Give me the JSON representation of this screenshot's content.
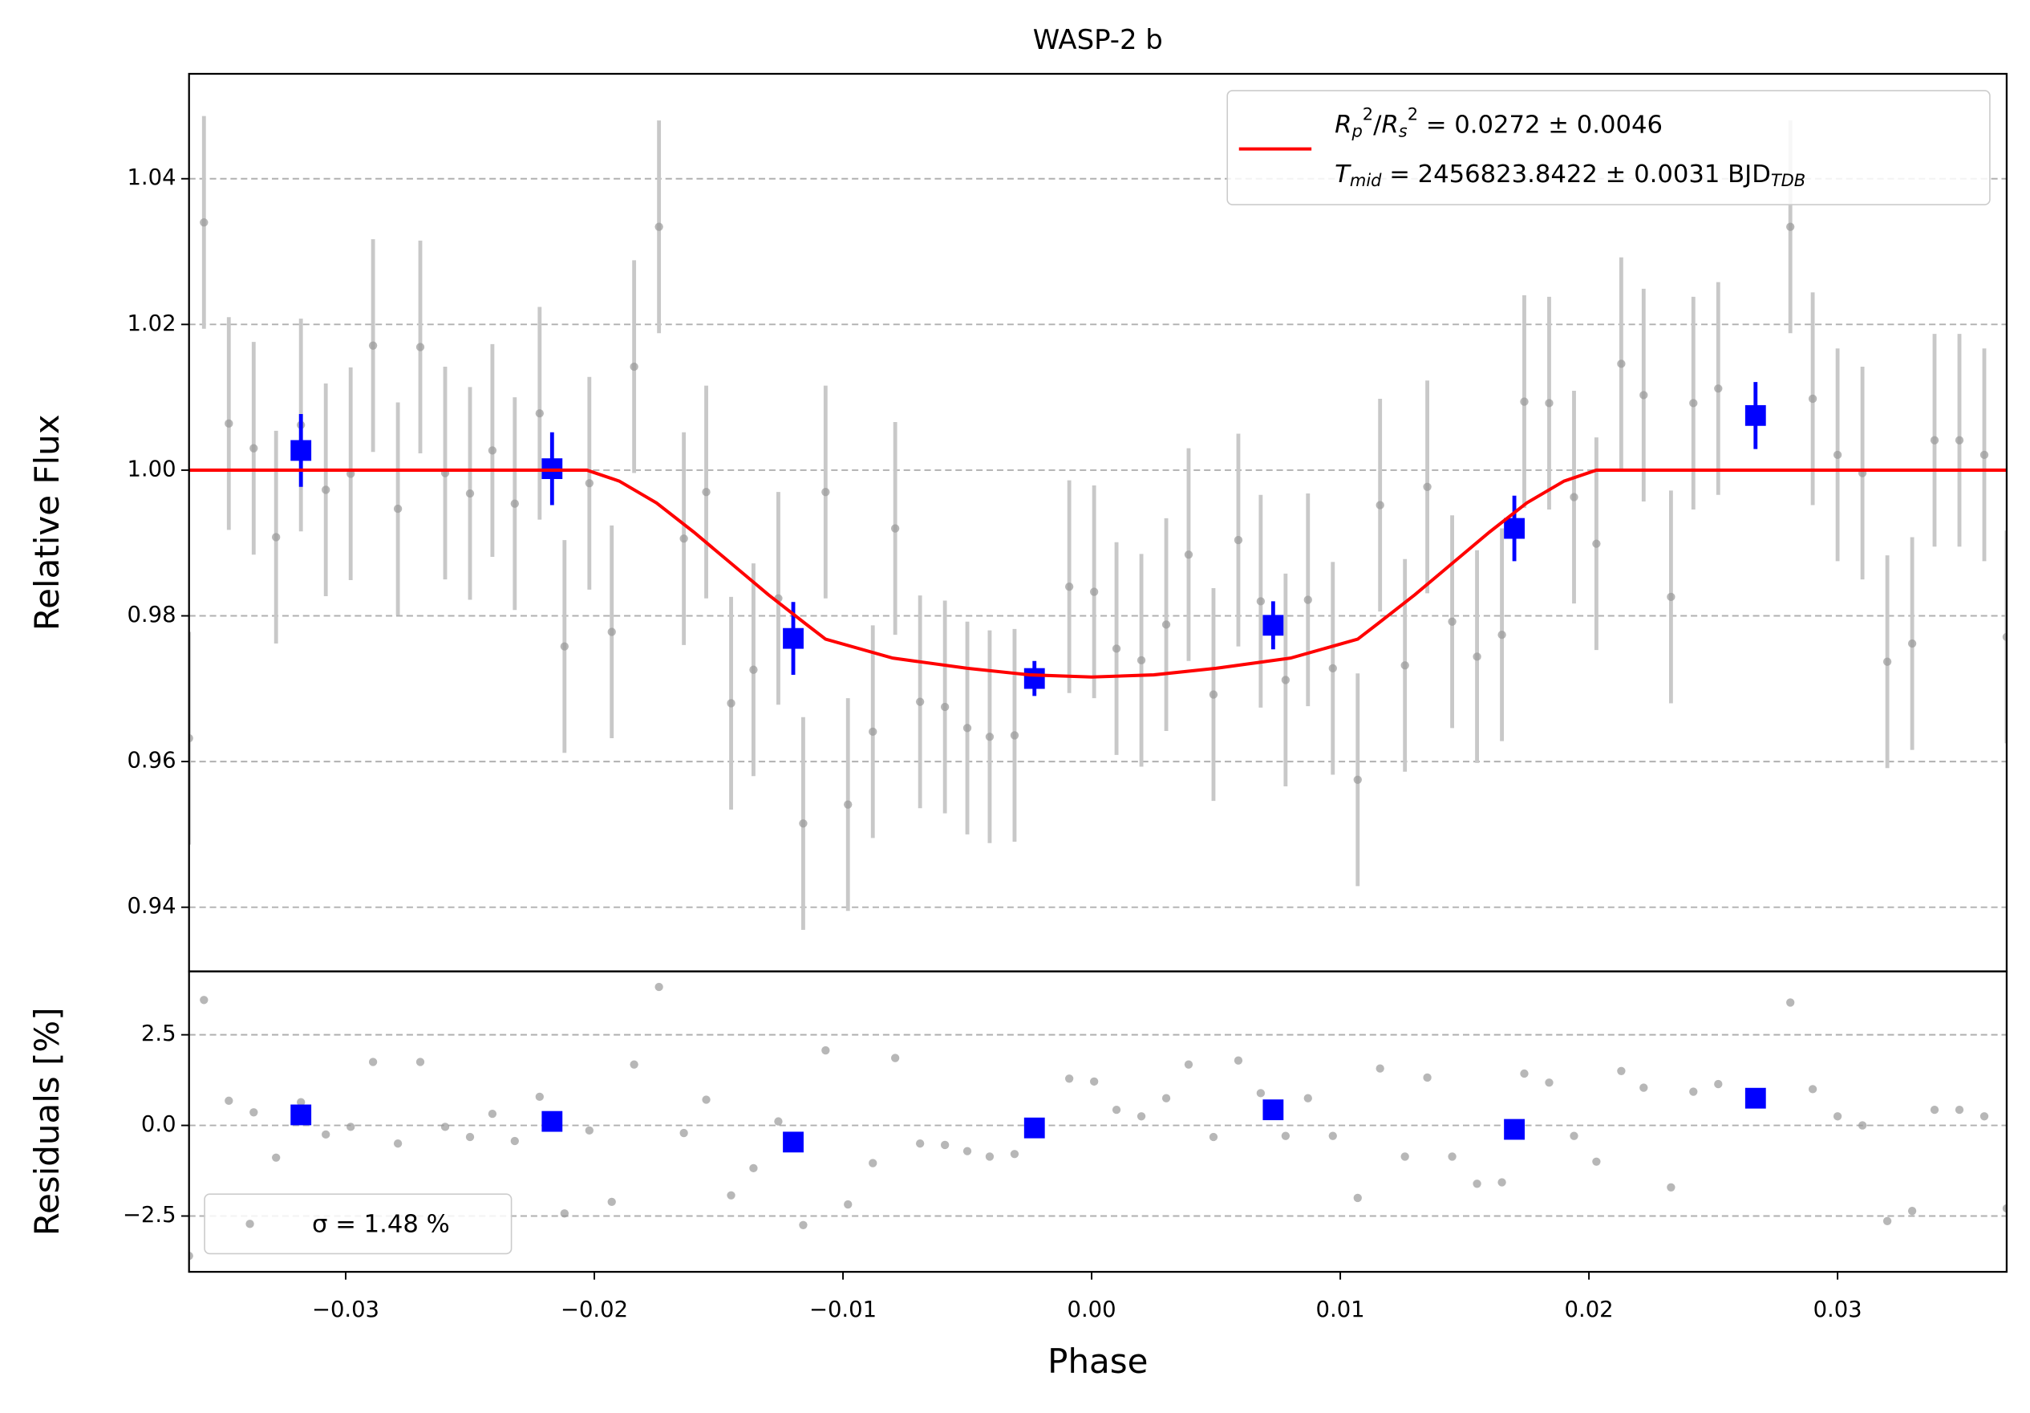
{
  "chart_data": [
    {
      "type": "scatter",
      "title": "WASP-2 b",
      "ylabel": "Relative Flux",
      "xlim": [
        -0.0363,
        0.0368
      ],
      "ylim": [
        0.9312,
        1.0544
      ],
      "yticks": [
        0.94,
        0.96,
        0.98,
        {
          "value": 1.0,
          "label": "1.00"
        },
        1.02,
        1.04
      ],
      "grid": true,
      "legend_loc": "upper right",
      "series": [
        {
          "color": "#999999",
          "marker": "circle",
          "x": [
            -0.0363,
            -0.0357,
            -0.0347,
            -0.0337,
            -0.0328,
            -0.0318,
            -0.0308,
            -0.0298,
            -0.0289,
            -0.0279,
            -0.027,
            -0.026,
            -0.025,
            -0.0241,
            -0.0232,
            -0.0222,
            -0.0212,
            -0.0202,
            -0.0193,
            -0.0184,
            -0.0174,
            -0.0164,
            -0.0155,
            -0.0145,
            -0.0136,
            -0.0126,
            -0.0116,
            -0.0107,
            -0.0098,
            -0.0088,
            -0.0079,
            -0.0069,
            -0.0059,
            -0.005,
            -0.0041,
            -0.0031,
            -0.0009,
            0.0001,
            0.001,
            0.002,
            0.003,
            0.0039,
            0.0049,
            0.0059,
            0.0068,
            0.0078,
            0.0087,
            0.0097,
            0.0107,
            0.0116,
            0.0126,
            0.0135,
            0.0145,
            0.0155,
            0.0165,
            0.0174,
            0.0184,
            0.0194,
            0.0203,
            0.0213,
            0.0222,
            0.0233,
            0.0242,
            0.0252,
            0.0281,
            0.029,
            0.03,
            0.031,
            0.032,
            0.033,
            0.0339,
            0.0349,
            0.0359,
            0.0368
          ],
          "values": [
            0.9632,
            1.034,
            1.0064,
            1.003,
            0.9908,
            1.0062,
            0.9973,
            0.9995,
            1.0171,
            0.9947,
            1.0169,
            0.9996,
            0.9968,
            1.0027,
            0.9954,
            1.0078,
            0.9758,
            0.9982,
            0.9778,
            1.0142,
            1.0334,
            0.9906,
            0.997,
            0.968,
            0.9726,
            0.9824,
            0.9515,
            0.997,
            0.9541,
            0.9641,
            0.992,
            0.9682,
            0.9675,
            0.9646,
            0.9634,
            0.9636,
            0.984,
            0.9833,
            0.9755,
            0.9739,
            0.9788,
            0.9884,
            0.9692,
            0.9904,
            0.982,
            0.9712,
            0.9822,
            0.9728,
            0.9575,
            0.9952,
            0.9732,
            0.9977,
            0.9792,
            0.9744,
            0.9774,
            1.0094,
            1.0092,
            0.9963,
            0.9899,
            1.0146,
            1.0103,
            0.9826,
            1.0092,
            1.0112,
            1.0334,
            1.0098,
            1.0021,
            0.9996,
            0.9737,
            0.9762,
            1.0041,
            1.0041,
            1.0021,
            0.9771
          ],
          "errors": [
            0.0146,
            0.0146,
            0.0146,
            0.0146,
            0.0146,
            0.0146,
            0.0146,
            0.0146,
            0.0146,
            0.0146,
            0.0146,
            0.0146,
            0.0146,
            0.0146,
            0.0146,
            0.0146,
            0.0146,
            0.0146,
            0.0146,
            0.0146,
            0.0146,
            0.0146,
            0.0146,
            0.0146,
            0.0146,
            0.0146,
            0.0146,
            0.0146,
            0.0146,
            0.0146,
            0.0146,
            0.0146,
            0.0146,
            0.0146,
            0.0146,
            0.0146,
            0.0146,
            0.0146,
            0.0146,
            0.0146,
            0.0146,
            0.0146,
            0.0146,
            0.0146,
            0.0146,
            0.0146,
            0.0146,
            0.0146,
            0.0146,
            0.0146,
            0.0146,
            0.0146,
            0.0146,
            0.0146,
            0.0146,
            0.0146,
            0.0146,
            0.0146,
            0.0146,
            0.0146,
            0.0146,
            0.0146,
            0.0146,
            0.0146,
            0.0146,
            0.0146,
            0.0146,
            0.0146,
            0.0146,
            0.0146,
            0.0146,
            0.0146,
            0.0146,
            0.0146
          ]
        },
        {
          "color": "#0000ff",
          "marker": "square",
          "x": [
            -0.0318,
            -0.0217,
            -0.012,
            -0.0023,
            0.0073,
            0.017,
            0.0267
          ],
          "values": [
            1.0027,
            1.0002,
            0.9769,
            0.9714,
            0.9787,
            0.992,
            1.0075
          ],
          "errors": [
            0.005,
            0.005,
            0.005,
            0.0024,
            0.0033,
            0.0045,
            0.0046
          ]
        },
        {
          "type": "line",
          "color": "#ff0000",
          "x": [
            -0.0363,
            -0.0203,
            -0.019,
            -0.0175,
            -0.016,
            -0.0145,
            -0.013,
            -0.0115,
            -0.0107,
            -0.008,
            -0.005,
            -0.0025,
            0,
            0.0025,
            0.005,
            0.008,
            0.0107,
            0.0115,
            0.013,
            0.0145,
            0.016,
            0.0175,
            0.019,
            0.0203,
            0.0368
          ],
          "values": [
            1.0,
            1.0,
            0.9985,
            0.9955,
            0.9915,
            0.9872,
            0.9829,
            0.9789,
            0.9768,
            0.9742,
            0.9728,
            0.9719,
            0.9716,
            0.9719,
            0.9728,
            0.9742,
            0.9768,
            0.9789,
            0.9829,
            0.9872,
            0.9915,
            0.9955,
            0.9985,
            1.0,
            1.0
          ],
          "name_lines": [
            [
              {
                "text": "R",
                "italic": true
              },
              {
                "text": "p",
                "italic": true,
                "sub": true
              },
              {
                "text": "2",
                "sup": true
              },
              {
                "text": "/"
              },
              {
                "text": "R",
                "italic": true
              },
              {
                "text": "s",
                "italic": true,
                "sub": true
              },
              {
                "text": "2",
                "sup": true
              },
              {
                "text": " = 0.0272 ± 0.0046"
              }
            ],
            [
              {
                "text": "T",
                "italic": true
              },
              {
                "text": "mid",
                "italic": true,
                "sub": true
              },
              {
                "text": " = 2456823.8422 ± 0.0031 BJD"
              },
              {
                "text": "TDB",
                "italic": true,
                "sub": true
              }
            ]
          ]
        }
      ]
    },
    {
      "type": "scatter",
      "ylabel": "Residuals [%]",
      "xlabel": "Phase",
      "xlim": [
        -0.0363,
        0.0368
      ],
      "xticks": [
        {
          "value": -0.03,
          "label": "−0.03"
        },
        {
          "value": -0.02,
          "label": "−0.02"
        },
        {
          "value": -0.01,
          "label": "−0.01"
        },
        {
          "value": 0,
          "label": "0.00"
        },
        0.01,
        0.02,
        0.03
      ],
      "ylim": [
        -4.04,
        4.25
      ],
      "yticks": [
        {
          "value": -2.5,
          "label": "−2.5"
        },
        {
          "value": 0,
          "label": "0.0"
        },
        2.5
      ],
      "grid": true,
      "legend_loc": "lower left",
      "series": [
        {
          "name": "σ = 1.48 %",
          "color": "#999999",
          "marker": "circle",
          "x": [
            -0.0363,
            -0.0357,
            -0.0347,
            -0.0337,
            -0.0328,
            -0.0318,
            -0.0308,
            -0.0298,
            -0.0289,
            -0.0279,
            -0.027,
            -0.026,
            -0.025,
            -0.0241,
            -0.0232,
            -0.0222,
            -0.0212,
            -0.0202,
            -0.0193,
            -0.0184,
            -0.0174,
            -0.0164,
            -0.0155,
            -0.0145,
            -0.0136,
            -0.0126,
            -0.0116,
            -0.0107,
            -0.0098,
            -0.0088,
            -0.0079,
            -0.0069,
            -0.0059,
            -0.005,
            -0.0041,
            -0.0031,
            -0.0009,
            0.0001,
            0.001,
            0.002,
            0.003,
            0.0039,
            0.0049,
            0.0059,
            0.0068,
            0.0078,
            0.0087,
            0.0097,
            0.0107,
            0.0116,
            0.0126,
            0.0135,
            0.0145,
            0.0155,
            0.0165,
            0.0174,
            0.0184,
            0.0194,
            0.0203,
            0.0213,
            0.0222,
            0.0233,
            0.0242,
            0.0252,
            0.0281,
            0.029,
            0.03,
            0.031,
            0.032,
            0.033,
            0.0339,
            0.0349,
            0.0359,
            0.0368
          ],
          "values": [
            -3.6,
            3.46,
            0.68,
            0.36,
            -0.89,
            0.64,
            -0.25,
            -0.04,
            1.75,
            -0.5,
            1.75,
            -0.04,
            -0.32,
            0.32,
            -0.43,
            0.79,
            -2.43,
            -0.14,
            -2.11,
            1.68,
            3.82,
            -0.21,
            0.71,
            -1.93,
            -1.18,
            0.11,
            -2.75,
            2.07,
            -2.18,
            -1.04,
            1.86,
            -0.5,
            -0.54,
            -0.71,
            -0.86,
            -0.79,
            1.29,
            1.21,
            0.43,
            0.25,
            0.75,
            1.68,
            -0.32,
            1.79,
            0.89,
            -0.29,
            0.75,
            -0.29,
            -2.0,
            1.57,
            -0.86,
            1.32,
            -0.86,
            -1.61,
            -1.57,
            1.43,
            1.18,
            -0.29,
            -1.0,
            1.5,
            1.04,
            -1.71,
            0.93,
            1.14,
            3.39,
            1.0,
            0.25,
            0.0,
            -2.64,
            -2.36,
            0.43,
            0.43,
            0.25,
            -2.29
          ]
        },
        {
          "color": "#0000ff",
          "marker": "square",
          "x": [
            -0.0318,
            -0.0217,
            -0.012,
            -0.0023,
            0.0073,
            0.017,
            0.0267
          ],
          "values": [
            0.29,
            0.11,
            -0.46,
            -0.07,
            0.43,
            -0.11,
            0.75
          ]
        }
      ]
    }
  ]
}
